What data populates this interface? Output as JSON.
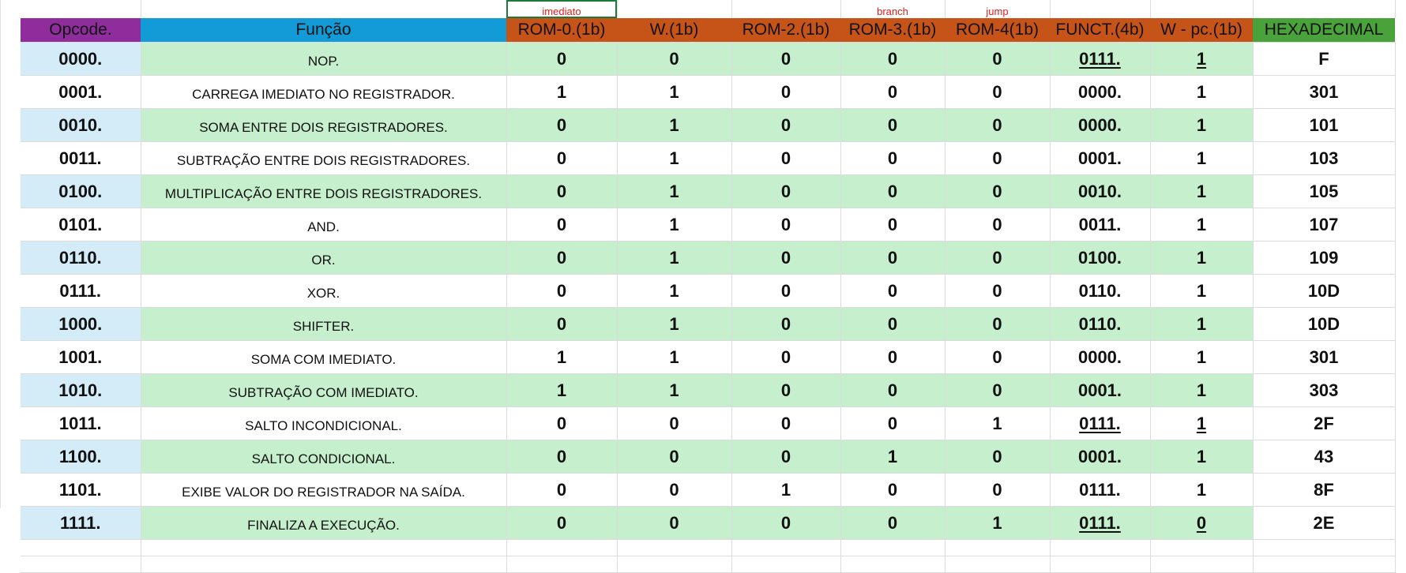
{
  "annotations": {
    "rom0": "imediato",
    "rom3": "branch",
    "rom4": "jump"
  },
  "headers": {
    "opcode": "Opcode.",
    "funcao": "Função",
    "rom0": "ROM-0.(1b)",
    "w": "W.(1b)",
    "rom2": "ROM-2.(1b)",
    "rom3": "ROM-3.(1b)",
    "rom4": "ROM-4(1b)",
    "funct": "FUNCT.(4b)",
    "wpc": "W - pc.(1b)",
    "hex": "HEXADECIMAL"
  },
  "rows": [
    {
      "opcode": "0000.",
      "funcao": "NOP.",
      "rom0": "0",
      "w": "0",
      "rom2": "0",
      "rom3": "0",
      "rom4": "0",
      "funct": "0111.",
      "wpc": "1",
      "hex": "F"
    },
    {
      "opcode": "0001.",
      "funcao": "CARREGA IMEDIATO NO REGISTRADOR.",
      "rom0": "1",
      "w": "1",
      "rom2": "0",
      "rom3": "0",
      "rom4": "0",
      "funct": "0000.",
      "wpc": "1",
      "hex": "301"
    },
    {
      "opcode": "0010.",
      "funcao": "SOMA ENTRE DOIS REGISTRADORES.",
      "rom0": "0",
      "w": "1",
      "rom2": "0",
      "rom3": "0",
      "rom4": "0",
      "funct": "0000.",
      "wpc": "1",
      "hex": "101"
    },
    {
      "opcode": "0011.",
      "funcao": "SUBTRAÇÃO ENTRE DOIS REGISTRADORES.",
      "rom0": "0",
      "w": "1",
      "rom2": "0",
      "rom3": "0",
      "rom4": "0",
      "funct": "0001.",
      "wpc": "1",
      "hex": "103"
    },
    {
      "opcode": "0100.",
      "funcao": "MULTIPLICAÇÃO ENTRE DOIS REGISTRADORES.",
      "rom0": "0",
      "w": "1",
      "rom2": "0",
      "rom3": "0",
      "rom4": "0",
      "funct": "0010.",
      "wpc": "1",
      "hex": "105"
    },
    {
      "opcode": "0101.",
      "funcao": "AND.",
      "rom0": "0",
      "w": "1",
      "rom2": "0",
      "rom3": "0",
      "rom4": "0",
      "funct": "0011.",
      "wpc": "1",
      "hex": "107"
    },
    {
      "opcode": "0110.",
      "funcao": "OR.",
      "rom0": "0",
      "w": "1",
      "rom2": "0",
      "rom3": "0",
      "rom4": "0",
      "funct": "0100.",
      "wpc": "1",
      "hex": "109"
    },
    {
      "opcode": "0111.",
      "funcao": "XOR.",
      "rom0": "0",
      "w": "1",
      "rom2": "0",
      "rom3": "0",
      "rom4": "0",
      "funct": "0110.",
      "wpc": "1",
      "hex": "10D"
    },
    {
      "opcode": "1000.",
      "funcao": "SHIFTER.",
      "rom0": "0",
      "w": "1",
      "rom2": "0",
      "rom3": "0",
      "rom4": "0",
      "funct": "0110.",
      "wpc": "1",
      "hex": "10D"
    },
    {
      "opcode": "1001.",
      "funcao": "SOMA COM IMEDIATO.",
      "rom0": "1",
      "w": "1",
      "rom2": "0",
      "rom3": "0",
      "rom4": "0",
      "funct": "0000.",
      "wpc": "1",
      "hex": "301"
    },
    {
      "opcode": "1010.",
      "funcao": "SUBTRAÇÃO COM IMEDIATO.",
      "rom0": "1",
      "w": "1",
      "rom2": "0",
      "rom3": "0",
      "rom4": "0",
      "funct": "0001.",
      "wpc": "1",
      "hex": "303"
    },
    {
      "opcode": "1011.",
      "funcao": "SALTO INCONDICIONAL.",
      "rom0": "0",
      "w": "0",
      "rom2": "0",
      "rom3": "0",
      "rom4": "1",
      "funct": "0111.",
      "wpc": "1",
      "hex": "2F"
    },
    {
      "opcode": "1100.",
      "funcao": "SALTO CONDICIONAL.",
      "rom0": "0",
      "w": "0",
      "rom2": "0",
      "rom3": "1",
      "rom4": "0",
      "funct": "0001.",
      "wpc": "1",
      "hex": "43"
    },
    {
      "opcode": "1101.",
      "funcao": "EXIBE VALOR DO REGISTRADOR NA SAÍDA.",
      "rom0": "0",
      "w": "0",
      "rom2": "1",
      "rom3": "0",
      "rom4": "0",
      "funct": "0111.",
      "wpc": "1",
      "hex": "8F"
    },
    {
      "opcode": "1111.",
      "funcao": "FINALIZA A EXECUÇÃO.",
      "rom0": "0",
      "w": "0",
      "rom2": "0",
      "rom3": "0",
      "rom4": "1",
      "funct": "0111.",
      "wpc": "0",
      "hex": "2E"
    }
  ],
  "underlined": {
    "funct_rows": [
      0,
      11,
      14
    ],
    "wpc_rows": [
      0,
      11,
      14
    ]
  },
  "colors": {
    "opcode_header": "#8f2d9d",
    "funcao_header": "#129bd6",
    "rom_header": "#c65418",
    "hex_header": "#4aa33a",
    "row_band": "#c6efce",
    "opcode_band": "#d3ecf8",
    "annotation_text": "#e0201c",
    "selected_cell_border": "#1d7a3a"
  }
}
